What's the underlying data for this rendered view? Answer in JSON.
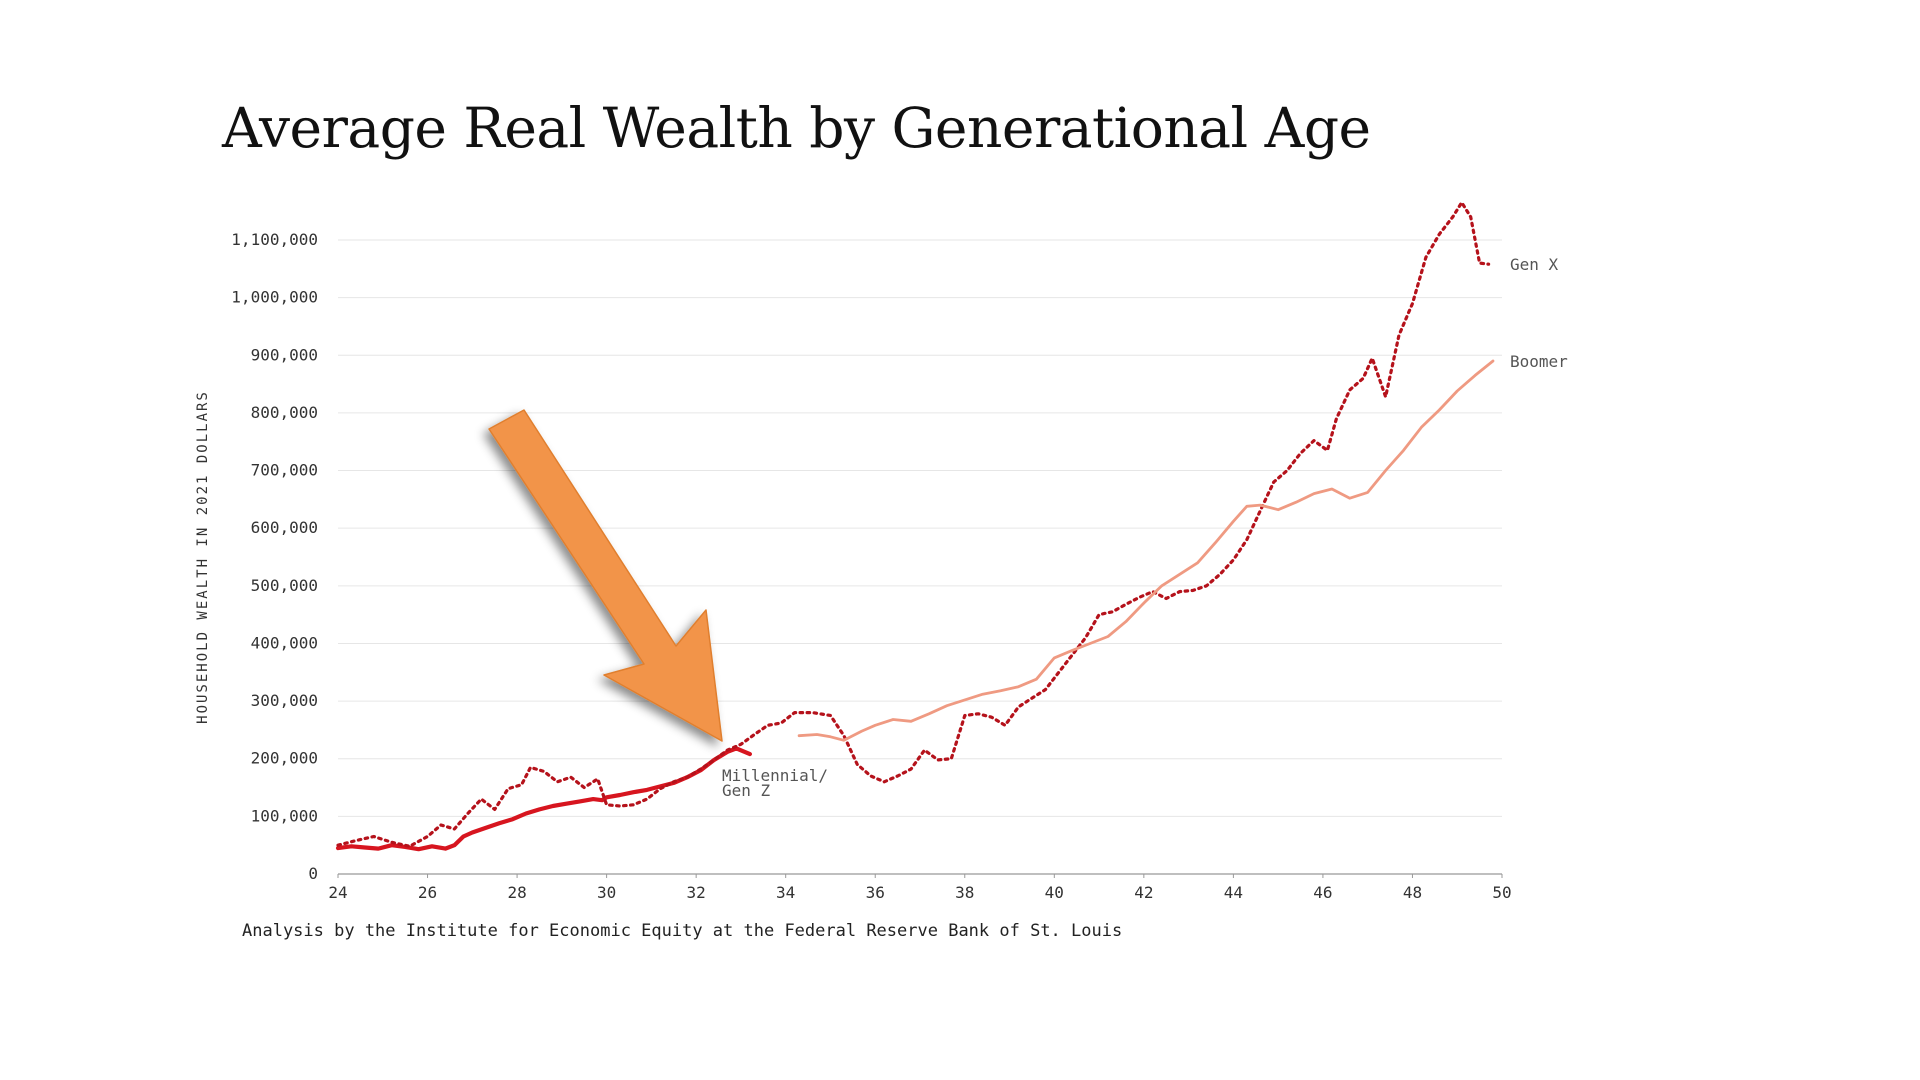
{
  "chart_data": {
    "type": "line",
    "title": "Average Real Wealth by Generational Age",
    "ylabel": "HOUSEHOLD WEALTH IN 2021 DOLLARS",
    "xlabel": "",
    "xlim": [
      24,
      50
    ],
    "ylim": [
      0,
      1100000
    ],
    "x_ticks": [
      24,
      26,
      28,
      30,
      32,
      34,
      36,
      38,
      40,
      42,
      44,
      46,
      48,
      50
    ],
    "y_ticks": [
      0,
      100000,
      200000,
      300000,
      400000,
      500000,
      600000,
      700000,
      800000,
      900000,
      1000000,
      1100000
    ],
    "y_tick_labels": [
      "0",
      "100,000",
      "200,000",
      "300,000",
      "400,000",
      "500,000",
      "600,000",
      "700,000",
      "800,000",
      "900,000",
      "1,000,000",
      "1,100,000"
    ],
    "grid": "horizontal",
    "source_note": "Analysis by the Institute for Economic Equity at the Federal Reserve Bank of St. Louis",
    "series": [
      {
        "name": "Millennial/ Gen Z",
        "label_lines": [
          "Millennial/",
          "Gen Z"
        ],
        "color": "#d7151f",
        "style": "solid-thick",
        "points": [
          [
            24.0,
            45000
          ],
          [
            24.3,
            48000
          ],
          [
            24.6,
            46000
          ],
          [
            24.9,
            44000
          ],
          [
            25.2,
            50000
          ],
          [
            25.5,
            47000
          ],
          [
            25.8,
            43000
          ],
          [
            26.1,
            48000
          ],
          [
            26.4,
            44000
          ],
          [
            26.6,
            50000
          ],
          [
            26.8,
            65000
          ],
          [
            27.0,
            72000
          ],
          [
            27.3,
            80000
          ],
          [
            27.6,
            88000
          ],
          [
            27.9,
            95000
          ],
          [
            28.2,
            105000
          ],
          [
            28.5,
            112000
          ],
          [
            28.8,
            118000
          ],
          [
            29.1,
            122000
          ],
          [
            29.4,
            126000
          ],
          [
            29.7,
            130000
          ],
          [
            29.9,
            128000
          ],
          [
            30.0,
            133000
          ],
          [
            30.3,
            137000
          ],
          [
            30.6,
            142000
          ],
          [
            30.9,
            146000
          ],
          [
            31.2,
            152000
          ],
          [
            31.5,
            158000
          ],
          [
            31.8,
            168000
          ],
          [
            32.1,
            180000
          ],
          [
            32.4,
            198000
          ],
          [
            32.7,
            212000
          ],
          [
            32.9,
            218000
          ],
          [
            33.2,
            208000
          ]
        ]
      },
      {
        "name": "Gen X",
        "label_lines": [
          "Gen X"
        ],
        "color": "#b5121b",
        "style": "dotted",
        "points": [
          [
            24.0,
            50000
          ],
          [
            24.4,
            58000
          ],
          [
            24.8,
            65000
          ],
          [
            25.2,
            55000
          ],
          [
            25.6,
            48000
          ],
          [
            26.0,
            65000
          ],
          [
            26.3,
            85000
          ],
          [
            26.6,
            78000
          ],
          [
            26.9,
            105000
          ],
          [
            27.2,
            130000
          ],
          [
            27.5,
            112000
          ],
          [
            27.8,
            148000
          ],
          [
            28.1,
            155000
          ],
          [
            28.3,
            185000
          ],
          [
            28.6,
            178000
          ],
          [
            28.9,
            160000
          ],
          [
            29.2,
            168000
          ],
          [
            29.5,
            150000
          ],
          [
            29.8,
            165000
          ],
          [
            30.0,
            120000
          ],
          [
            30.3,
            118000
          ],
          [
            30.6,
            120000
          ],
          [
            30.9,
            130000
          ],
          [
            31.2,
            148000
          ],
          [
            31.5,
            160000
          ],
          [
            31.8,
            168000
          ],
          [
            32.1,
            182000
          ],
          [
            32.4,
            198000
          ],
          [
            32.7,
            215000
          ],
          [
            33.0,
            225000
          ],
          [
            33.3,
            242000
          ],
          [
            33.6,
            258000
          ],
          [
            33.9,
            262000
          ],
          [
            34.2,
            280000
          ],
          [
            34.6,
            280000
          ],
          [
            35.0,
            275000
          ],
          [
            35.3,
            240000
          ],
          [
            35.6,
            190000
          ],
          [
            35.9,
            170000
          ],
          [
            36.2,
            160000
          ],
          [
            36.5,
            170000
          ],
          [
            36.8,
            182000
          ],
          [
            37.1,
            215000
          ],
          [
            37.4,
            198000
          ],
          [
            37.7,
            200000
          ],
          [
            38.0,
            275000
          ],
          [
            38.3,
            278000
          ],
          [
            38.6,
            272000
          ],
          [
            38.9,
            258000
          ],
          [
            39.2,
            290000
          ],
          [
            39.5,
            305000
          ],
          [
            39.8,
            320000
          ],
          [
            40.1,
            350000
          ],
          [
            40.4,
            380000
          ],
          [
            40.7,
            410000
          ],
          [
            41.0,
            450000
          ],
          [
            41.3,
            455000
          ],
          [
            41.6,
            468000
          ],
          [
            41.9,
            480000
          ],
          [
            42.2,
            490000
          ],
          [
            42.5,
            478000
          ],
          [
            42.8,
            490000
          ],
          [
            43.1,
            492000
          ],
          [
            43.4,
            500000
          ],
          [
            43.7,
            520000
          ],
          [
            44.0,
            545000
          ],
          [
            44.3,
            580000
          ],
          [
            44.6,
            630000
          ],
          [
            44.9,
            680000
          ],
          [
            45.2,
            700000
          ],
          [
            45.5,
            730000
          ],
          [
            45.8,
            752000
          ],
          [
            46.1,
            735000
          ],
          [
            46.3,
            790000
          ],
          [
            46.6,
            840000
          ],
          [
            46.9,
            860000
          ],
          [
            47.1,
            895000
          ],
          [
            47.4,
            828000
          ],
          [
            47.7,
            935000
          ],
          [
            48.0,
            990000
          ],
          [
            48.3,
            1070000
          ],
          [
            48.6,
            1110000
          ],
          [
            48.9,
            1140000
          ],
          [
            49.1,
            1165000
          ],
          [
            49.3,
            1140000
          ],
          [
            49.5,
            1060000
          ],
          [
            49.7,
            1058000
          ]
        ]
      },
      {
        "name": "Boomer",
        "label_lines": [
          "Boomer"
        ],
        "color": "#ef9a82",
        "style": "solid",
        "points": [
          [
            34.3,
            240000
          ],
          [
            34.7,
            242000
          ],
          [
            35.0,
            238000
          ],
          [
            35.3,
            232000
          ],
          [
            35.7,
            248000
          ],
          [
            36.0,
            258000
          ],
          [
            36.4,
            268000
          ],
          [
            36.8,
            265000
          ],
          [
            37.2,
            278000
          ],
          [
            37.6,
            292000
          ],
          [
            38.0,
            302000
          ],
          [
            38.4,
            312000
          ],
          [
            38.8,
            318000
          ],
          [
            39.2,
            325000
          ],
          [
            39.6,
            338000
          ],
          [
            40.0,
            375000
          ],
          [
            40.4,
            388000
          ],
          [
            40.8,
            400000
          ],
          [
            41.2,
            412000
          ],
          [
            41.6,
            438000
          ],
          [
            42.0,
            470000
          ],
          [
            42.4,
            500000
          ],
          [
            42.8,
            520000
          ],
          [
            43.2,
            540000
          ],
          [
            43.6,
            575000
          ],
          [
            44.0,
            612000
          ],
          [
            44.3,
            638000
          ],
          [
            44.6,
            640000
          ],
          [
            45.0,
            632000
          ],
          [
            45.4,
            645000
          ],
          [
            45.8,
            660000
          ],
          [
            46.2,
            668000
          ],
          [
            46.6,
            652000
          ],
          [
            47.0,
            662000
          ],
          [
            47.4,
            700000
          ],
          [
            47.8,
            735000
          ],
          [
            48.2,
            775000
          ],
          [
            48.6,
            805000
          ],
          [
            49.0,
            838000
          ],
          [
            49.4,
            865000
          ],
          [
            49.8,
            890000
          ]
        ]
      }
    ]
  },
  "colors": {
    "arrow_fill": "#f2944a",
    "arrow_stroke": "#e07f2f",
    "grid": "#e6e6e6",
    "axis": "#999999"
  },
  "annotation": {
    "icon": "orange-arrow-icon"
  }
}
